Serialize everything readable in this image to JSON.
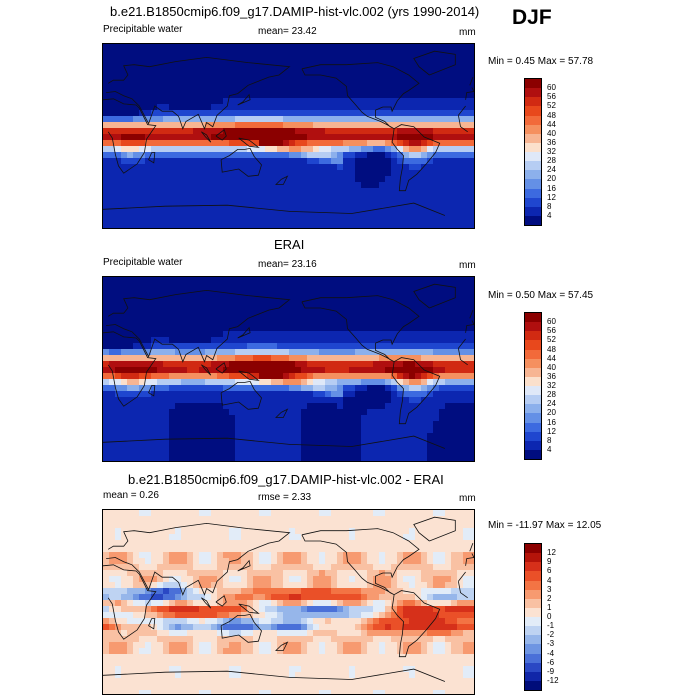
{
  "season": "DJF",
  "panels": [
    {
      "title": "b.e21.B1850cmip6.f09_g17.DAMIP-hist-vlc.002 (yrs 1990-2014)",
      "left_label": "Precipitable water",
      "mid_label": "mean=  23.42",
      "unit": "mm",
      "minmax": "Min =   0.45 Max =  57.78",
      "colorbar": {
        "labels": [
          "60",
          "56",
          "52",
          "48",
          "44",
          "40",
          "36",
          "32",
          "28",
          "24",
          "20",
          "16",
          "12",
          "8",
          "4"
        ],
        "colors": [
          "#8b0000",
          "#b00f0f",
          "#d12a12",
          "#e8481c",
          "#f26a3a",
          "#f5905f",
          "#f7b593",
          "#fbe0cc",
          "#dfe8f8",
          "#b6cdf3",
          "#8cb0ec",
          "#6490e6",
          "#3c6ae0",
          "#1f46cf",
          "#0c26b0",
          "#000d80"
        ]
      },
      "map_type": "precipitable-water"
    },
    {
      "title": "ERAI",
      "left_label": "Precipitable water",
      "mid_label": "mean=  23.16",
      "unit": "mm",
      "minmax": "Min =   0.50 Max =  57.45",
      "colorbar": {
        "labels": [
          "60",
          "56",
          "52",
          "48",
          "44",
          "40",
          "36",
          "32",
          "28",
          "24",
          "20",
          "16",
          "12",
          "8",
          "4"
        ],
        "colors": [
          "#8b0000",
          "#b00f0f",
          "#d12a12",
          "#e8481c",
          "#f26a3a",
          "#f5905f",
          "#f7b593",
          "#fbe0cc",
          "#dfe8f8",
          "#b6cdf3",
          "#8cb0ec",
          "#6490e6",
          "#3c6ae0",
          "#1f46cf",
          "#0c26b0",
          "#000d80"
        ]
      },
      "map_type": "precipitable-water"
    },
    {
      "title": "b.e21.B1850cmip6.f09_g17.DAMIP-hist-vlc.002 - ERAI",
      "left_label": "mean =   0.26",
      "mid_label": "rmse =   2.33",
      "unit": "mm",
      "minmax": "Min = -11.97 Max =  12.05",
      "colorbar": {
        "labels": [
          "12",
          "9",
          "6",
          "4",
          "3",
          "2",
          "1",
          "0",
          "-1",
          "-2",
          "-3",
          "-4",
          "-6",
          "-9",
          "-12"
        ],
        "colors": [
          "#8b0000",
          "#b4140a",
          "#d6301a",
          "#ea5028",
          "#f37444",
          "#f79a70",
          "#f9c1a3",
          "#fbe2d2",
          "#e2ecf8",
          "#bed3f2",
          "#96b6ea",
          "#6e95e2",
          "#4a70d8",
          "#2a48c4",
          "#1026a8",
          "#000d7a"
        ]
      },
      "map_type": "difference"
    }
  ]
}
